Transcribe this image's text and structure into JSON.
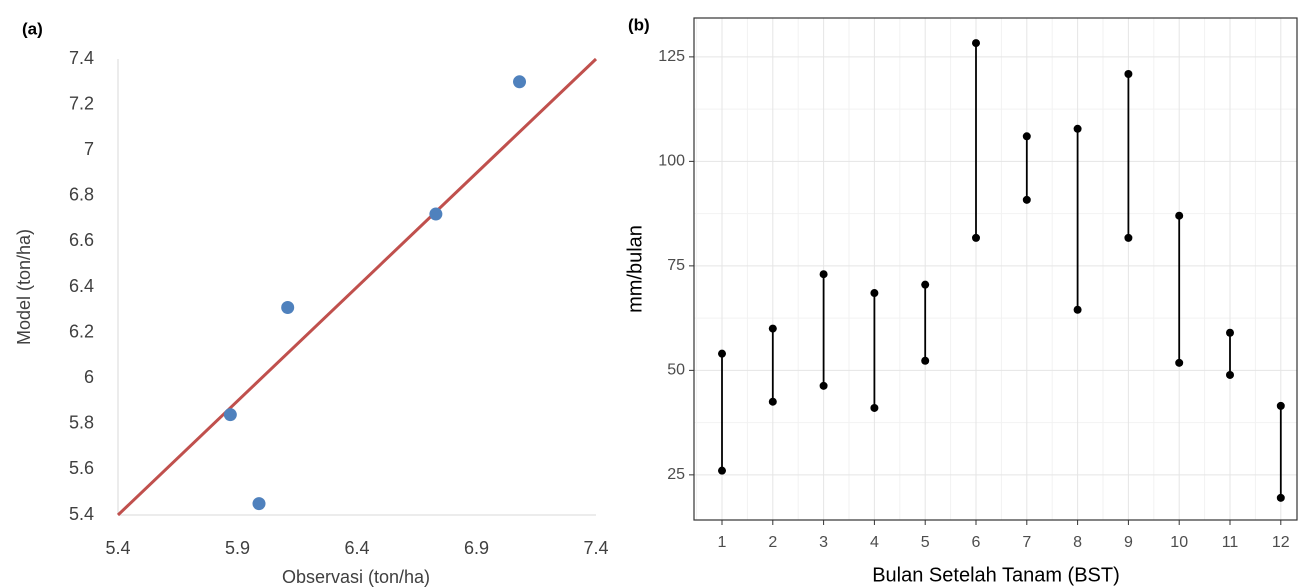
{
  "chart_data": [
    {
      "type": "scatter",
      "label": "(a)",
      "x_label": "Observasi (ton/ha)",
      "y_label": "Model (ton/ha)",
      "x": [
        7.08,
        6.73,
        6.11,
        5.87,
        5.99
      ],
      "y": [
        7.3,
        6.72,
        6.31,
        5.84,
        5.45
      ],
      "color": "#4f81bd",
      "fit_line": {
        "x": [
          5.4,
          7.4
        ],
        "y": [
          5.4,
          7.4
        ],
        "color": "#c0504d"
      },
      "xlim": [
        5.4,
        7.4
      ],
      "xticks": [
        5.4,
        5.9,
        6.4,
        6.9,
        7.4
      ],
      "ylim": [
        5.4,
        7.4
      ],
      "yticks": [
        5.4,
        5.6,
        5.8,
        6,
        6.2,
        6.4,
        6.6,
        6.8,
        7,
        7.2,
        7.4
      ],
      "grid": false
    },
    {
      "type": "range",
      "label": "(b)",
      "x_label": "Bulan Setelah Tanam (BST)",
      "y_label": "mm/bulan",
      "categories": [
        1,
        2,
        3,
        4,
        5,
        6,
        7,
        8,
        9,
        10,
        11,
        12
      ],
      "high": [
        54,
        60,
        73,
        68.5,
        70.5,
        128.3,
        106,
        107.8,
        120.9,
        87,
        59,
        41.5
      ],
      "low": [
        26,
        42.5,
        46.3,
        41,
        52.3,
        81.7,
        90.8,
        64.5,
        81.7,
        51.8,
        48.9,
        19.5
      ],
      "color": "#000000",
      "ylim": [
        14.2,
        134.3
      ],
      "yticks": [
        25,
        50,
        75,
        100,
        125
      ],
      "grid": true
    }
  ]
}
